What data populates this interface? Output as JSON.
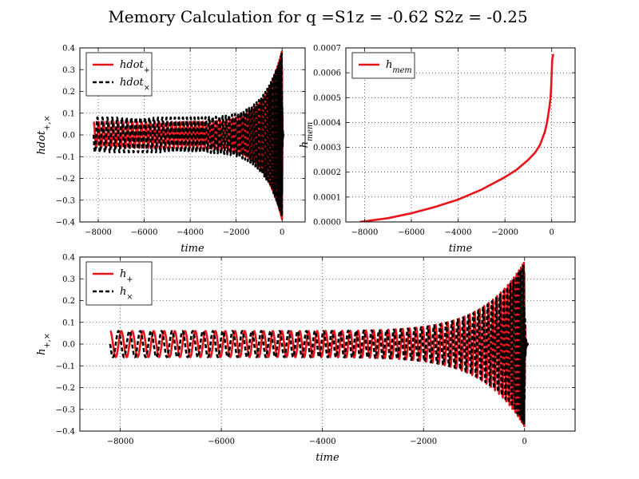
{
  "figure": {
    "title": "Memory Calculation for q =S1z = -0.62  S2z = -0.25"
  },
  "chart_data": [
    {
      "type": "line",
      "xlabel": "time",
      "ylabel": "hdot_{+,×}",
      "xlim": [
        -8800,
        1000
      ],
      "ylim": [
        -0.4,
        0.4
      ],
      "x_ticks": [
        -8000,
        -6000,
        -4000,
        -2000,
        0
      ],
      "y_ticks": [
        -0.4,
        -0.3,
        -0.2,
        -0.1,
        0.0,
        0.1,
        0.2,
        0.3,
        0.4
      ],
      "x_tick_labels": [
        "−8000",
        "−6000",
        "−4000",
        "−2000",
        "0"
      ],
      "y_tick_labels": [
        "−0.4",
        "−0.3",
        "−0.2",
        "−0.1",
        "0.0",
        "0.1",
        "0.2",
        "0.3",
        "0.4"
      ],
      "grid": true,
      "legend_position": "top-left",
      "series": [
        {
          "name": "hdot_+",
          "color": "#e8141a",
          "style": "solid",
          "signal": {
            "kind": "chirp",
            "t_start": -8200,
            "t_merge": 0,
            "t_end": 50,
            "amp_start": 0.06,
            "amp_peak": 0.39,
            "phase": 0
          }
        },
        {
          "name": "hdot_×",
          "color": "#000000",
          "style": "dashed",
          "signal": {
            "kind": "chirp",
            "t_start": -8200,
            "t_merge": 0,
            "t_end": 50,
            "amp_start": 0.08,
            "amp_peak": 0.38,
            "phase": 1.57
          }
        }
      ]
    },
    {
      "type": "line",
      "xlabel": "time",
      "ylabel": "h_mem",
      "xlim": [
        -8800,
        1000
      ],
      "ylim": [
        0,
        0.0007
      ],
      "x_ticks": [
        -8000,
        -6000,
        -4000,
        -2000,
        0
      ],
      "y_ticks": [
        0,
        0.0001,
        0.0002,
        0.0003,
        0.0004,
        0.0005,
        0.0006,
        0.0007
      ],
      "x_tick_labels": [
        "−8000",
        "−6000",
        "−4000",
        "−2000",
        "0"
      ],
      "y_tick_labels": [
        "0.0000",
        "0.0001",
        "0.0002",
        "0.0003",
        "0.0004",
        "0.0005",
        "0.0006",
        "0.0007"
      ],
      "grid": true,
      "legend_position": "top-left",
      "series": [
        {
          "name": "h_mem",
          "color": "#e8141a",
          "style": "solid",
          "x": [
            -8200,
            -7000,
            -6000,
            -5000,
            -4000,
            -3000,
            -2000,
            -1500,
            -1000,
            -700,
            -500,
            -300,
            -200,
            -100,
            -50,
            -20,
            0,
            20,
            50,
            80,
            100
          ],
          "y": [
            0.0,
            1.5e-05,
            3.5e-05,
            6e-05,
            9e-05,
            0.00013,
            0.00018,
            0.00021,
            0.00025,
            0.00028,
            0.00031,
            0.00036,
            0.0004,
            0.00046,
            0.0005,
            0.00055,
            0.0006,
            0.00065,
            0.00067,
            0.000672,
            0.000672
          ]
        }
      ]
    },
    {
      "type": "line",
      "xlabel": "time",
      "ylabel": "h_{+,×}",
      "xlim": [
        -8800,
        1000
      ],
      "ylim": [
        -0.4,
        0.4
      ],
      "x_ticks": [
        -8000,
        -6000,
        -4000,
        -2000,
        0
      ],
      "y_ticks": [
        -0.4,
        -0.3,
        -0.2,
        -0.1,
        0.0,
        0.1,
        0.2,
        0.3,
        0.4
      ],
      "x_tick_labels": [
        "−8000",
        "−6000",
        "−4000",
        "−2000",
        "0"
      ],
      "y_tick_labels": [
        "−0.4",
        "−0.3",
        "−0.2",
        "−0.1",
        "0.0",
        "0.1",
        "0.2",
        "0.3",
        "0.4"
      ],
      "grid": true,
      "legend_position": "top-left",
      "series": [
        {
          "name": "h_+",
          "color": "#e8141a",
          "style": "solid",
          "signal": {
            "kind": "chirp",
            "t_start": -8200,
            "t_merge": 0,
            "t_end": 80,
            "amp_start": 0.06,
            "amp_peak": 0.38,
            "phase": 0
          }
        },
        {
          "name": "h_×",
          "color": "#000000",
          "style": "dashed",
          "signal": {
            "kind": "chirp",
            "t_start": -8200,
            "t_merge": 0,
            "t_end": 80,
            "amp_start": 0.06,
            "amp_peak": 0.37,
            "phase": 1.57
          }
        }
      ]
    }
  ]
}
